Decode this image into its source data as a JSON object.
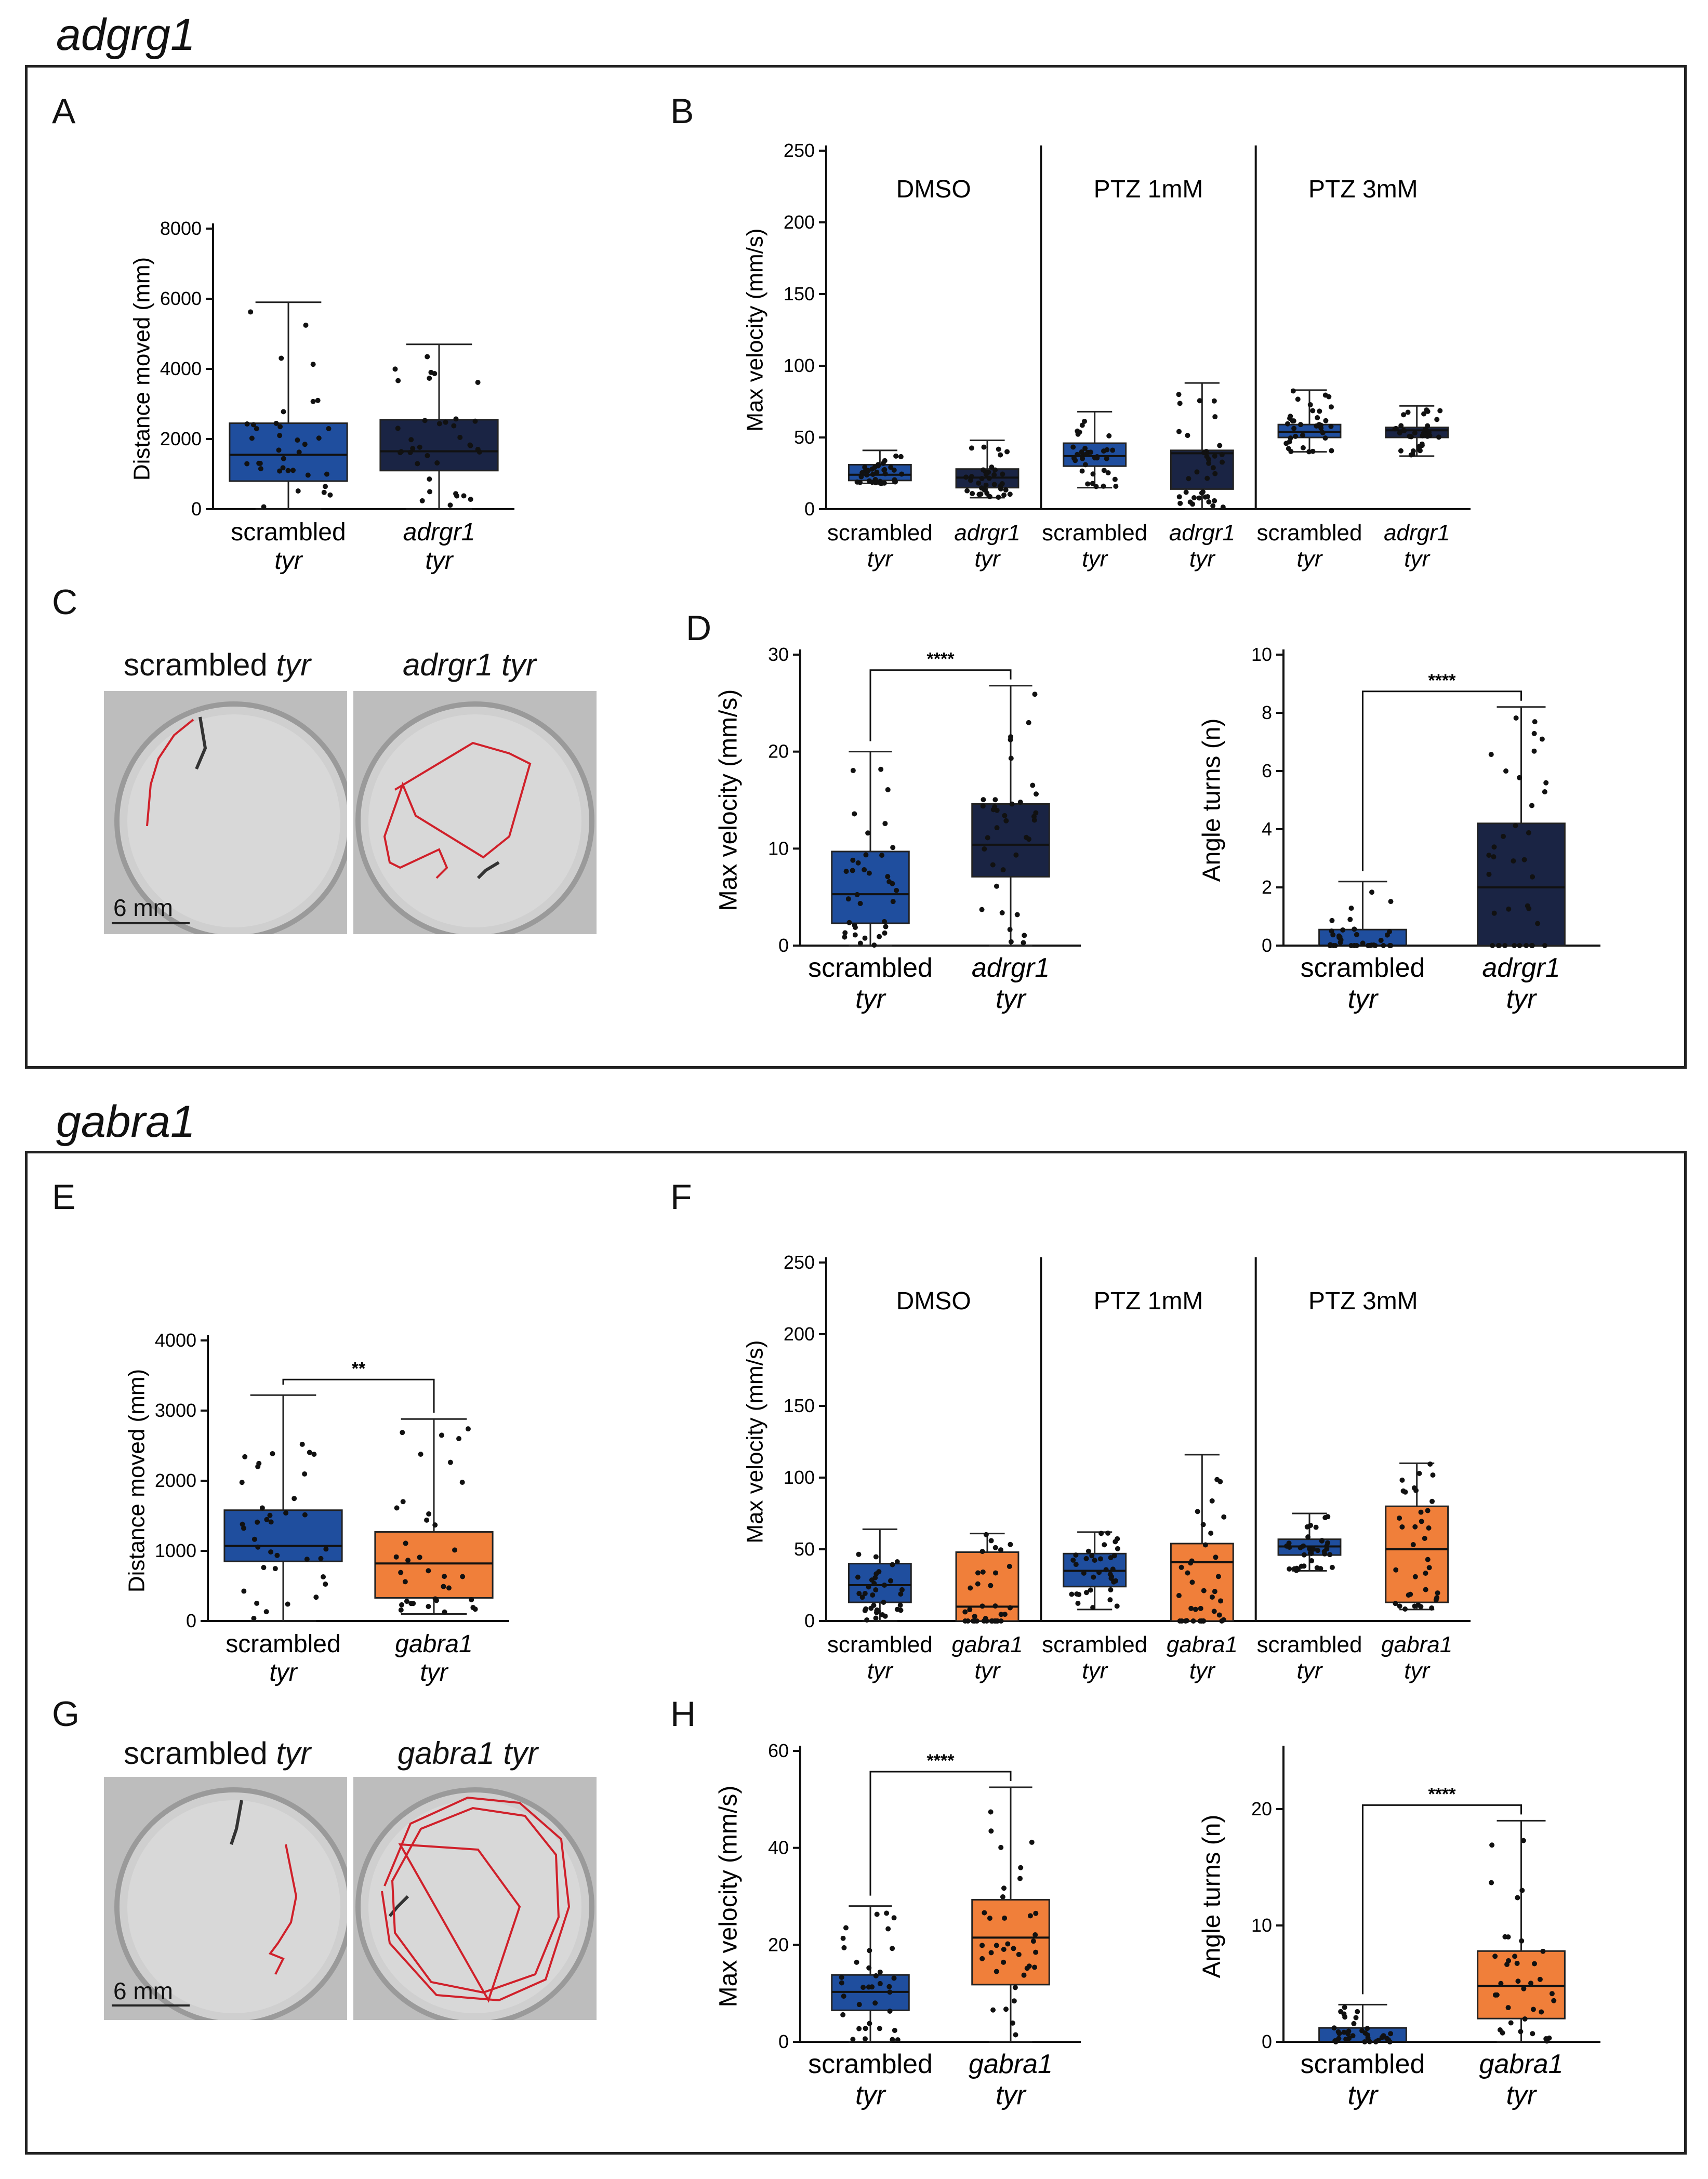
{
  "sections": {
    "top": {
      "title": "adgrg1"
    },
    "bottom": {
      "title": "gabra1"
    }
  },
  "colors": {
    "scrambled": "#1f4e9e",
    "adrgr1": "#1a2444",
    "gabra1": "#f07f3a",
    "trace": "#d0202a"
  },
  "panel_letters": {
    "A": "A",
    "B": "B",
    "C": "C",
    "D": "D",
    "E": "E",
    "F": "F",
    "G": "G",
    "H": "H"
  },
  "images": {
    "C": {
      "left_title": "scrambled",
      "left_italic": "tyr",
      "right_title": "adrgr1 tyr",
      "scale": "6 mm"
    },
    "G": {
      "left_title": "scrambled",
      "left_italic": "tyr",
      "right_title": "gabra1 tyr",
      "scale": "6 mm"
    }
  },
  "chart_data": [
    {
      "id": "A",
      "type": "box",
      "ylabel": "Distance moved (mm)",
      "ylim": [
        0,
        8000
      ],
      "yticks": [
        0,
        2000,
        4000,
        6000,
        8000
      ],
      "groups": [
        {
          "line1": "scrambled",
          "line2": "tyr",
          "color": "scrambled",
          "min": 0,
          "q1": 800,
          "median": 1550,
          "q3": 2450,
          "max": 5900
        },
        {
          "line1": "adrgr1",
          "line2": "tyr",
          "italic1": true,
          "color": "adrgr1",
          "min": 0,
          "q1": 1100,
          "median": 1650,
          "q3": 2550,
          "max": 4700
        }
      ],
      "sig": ""
    },
    {
      "id": "B",
      "type": "box",
      "ylabel": "Max velocity (mm/s)",
      "ylim": [
        0,
        250
      ],
      "yticks": [
        0,
        50,
        100,
        150,
        200,
        250
      ],
      "conditions": [
        "DMSO",
        "PTZ 1mM",
        "PTZ 3mM"
      ],
      "groups": [
        {
          "line1": "scrambled",
          "line2": "tyr",
          "color": "scrambled",
          "min": 18,
          "q1": 20,
          "median": 24,
          "q3": 31,
          "max": 41
        },
        {
          "line1": "adrgr1",
          "line2": "tyr",
          "italic1": true,
          "color": "adrgr1",
          "min": 8,
          "q1": 15,
          "median": 22,
          "q3": 28,
          "max": 48
        },
        {
          "line1": "scrambled",
          "line2": "tyr",
          "color": "scrambled",
          "min": 15,
          "q1": 30,
          "median": 37,
          "q3": 46,
          "max": 68
        },
        {
          "line1": "adrgr1",
          "line2": "tyr",
          "italic1": true,
          "color": "adrgr1",
          "min": 0,
          "q1": 14,
          "median": 39,
          "q3": 41,
          "max": 88
        },
        {
          "line1": "scrambled",
          "line2": "tyr",
          "color": "scrambled",
          "min": 40,
          "q1": 50,
          "median": 54,
          "q3": 59,
          "max": 83
        },
        {
          "line1": "adrgr1",
          "line2": "tyr",
          "italic1": true,
          "color": "adrgr1",
          "min": 37,
          "q1": 50,
          "median": 55,
          "q3": 57,
          "max": 72
        }
      ],
      "sig": ""
    },
    {
      "id": "D1",
      "type": "box",
      "ylabel": "Max velocity (mm/s)",
      "ylim": [
        0,
        30
      ],
      "yticks": [
        0,
        10,
        20,
        30
      ],
      "groups": [
        {
          "line1": "scrambled",
          "line2": "tyr",
          "color": "scrambled",
          "min": 0,
          "q1": 2.3,
          "median": 5.3,
          "q3": 9.7,
          "max": 20
        },
        {
          "line1": "adrgr1",
          "line2": "tyr",
          "italic1": true,
          "color": "adrgr1",
          "min": 0,
          "q1": 7.1,
          "median": 10.4,
          "q3": 14.6,
          "max": 26.8
        }
      ],
      "sig": "****"
    },
    {
      "id": "D2",
      "type": "box",
      "ylabel": "Angle turns (n)",
      "ylim": [
        0,
        10
      ],
      "yticks": [
        0,
        2,
        4,
        6,
        8,
        10
      ],
      "groups": [
        {
          "line1": "scrambled",
          "line2": "tyr",
          "color": "scrambled",
          "min": 0,
          "q1": 0,
          "median": 0,
          "q3": 0.55,
          "max": 2.2
        },
        {
          "line1": "adrgr1",
          "line2": "tyr",
          "italic1": true,
          "color": "adrgr1",
          "min": 0,
          "q1": 0,
          "median": 2,
          "q3": 4.2,
          "max": 8.2
        }
      ],
      "sig": "****"
    },
    {
      "id": "E",
      "type": "box",
      "ylabel": "Distance moved (mm)",
      "ylim": [
        0,
        4000
      ],
      "yticks": [
        0,
        1000,
        2000,
        3000,
        4000
      ],
      "groups": [
        {
          "line1": "scrambled",
          "line2": "tyr",
          "color": "scrambled",
          "min": 0,
          "q1": 850,
          "median": 1070,
          "q3": 1580,
          "max": 3220
        },
        {
          "line1": "gabra1",
          "line2": "tyr",
          "italic1": true,
          "color": "gabra1",
          "min": 100,
          "q1": 330,
          "median": 820,
          "q3": 1270,
          "max": 2880
        }
      ],
      "sig": "**"
    },
    {
      "id": "F",
      "type": "box",
      "ylabel": "Max velocity (mm/s)",
      "ylim": [
        0,
        250
      ],
      "yticks": [
        0,
        50,
        100,
        150,
        200,
        250
      ],
      "conditions": [
        "DMSO",
        "PTZ 1mM",
        "PTZ 3mM"
      ],
      "groups": [
        {
          "line1": "scrambled",
          "line2": "tyr",
          "color": "scrambled",
          "min": 0,
          "q1": 13,
          "median": 25,
          "q3": 40,
          "max": 64
        },
        {
          "line1": "gabra1",
          "line2": "tyr",
          "italic1": true,
          "color": "gabra1",
          "min": 0,
          "q1": 0,
          "median": 10,
          "q3": 48,
          "max": 61
        },
        {
          "line1": "scrambled",
          "line2": "tyr",
          "color": "scrambled",
          "min": 8,
          "q1": 24,
          "median": 35,
          "q3": 47,
          "max": 62
        },
        {
          "line1": "gabra1",
          "line2": "tyr",
          "italic1": true,
          "color": "gabra1",
          "min": 0,
          "q1": 0,
          "median": 41,
          "q3": 54,
          "max": 116
        },
        {
          "line1": "scrambled",
          "line2": "tyr",
          "color": "scrambled",
          "min": 35,
          "q1": 46,
          "median": 52,
          "q3": 57,
          "max": 75
        },
        {
          "line1": "gabra1",
          "line2": "tyr",
          "italic1": true,
          "color": "gabra1",
          "min": 8,
          "q1": 13,
          "median": 50,
          "q3": 80,
          "max": 110
        }
      ],
      "sig": ""
    },
    {
      "id": "H1",
      "type": "box",
      "ylabel": "Max velocity (mm/s)",
      "ylim": [
        0,
        60
      ],
      "yticks": [
        0,
        20,
        40,
        60
      ],
      "groups": [
        {
          "line1": "scrambled",
          "line2": "tyr",
          "color": "scrambled",
          "min": 0,
          "q1": 6.5,
          "median": 10.3,
          "q3": 13.8,
          "max": 28
        },
        {
          "line1": "gabra1",
          "line2": "tyr",
          "italic1": true,
          "color": "gabra1",
          "min": 0,
          "q1": 11.8,
          "median": 21.5,
          "q3": 29.3,
          "max": 52.5
        }
      ],
      "sig": "****"
    },
    {
      "id": "H2",
      "type": "box",
      "ylabel": "Angle turns (n)",
      "ylim": [
        0,
        25
      ],
      "yticks": [
        0,
        10,
        20
      ],
      "groups": [
        {
          "line1": "scrambled",
          "line2": "tyr",
          "color": "scrambled",
          "min": 0,
          "q1": 0,
          "median": 0,
          "q3": 1.2,
          "max": 3.2
        },
        {
          "line1": "gabra1",
          "line2": "tyr",
          "italic1": true,
          "color": "gabra1",
          "min": 0,
          "q1": 2,
          "median": 4.8,
          "q3": 7.8,
          "max": 19
        }
      ],
      "sig": "****"
    }
  ]
}
